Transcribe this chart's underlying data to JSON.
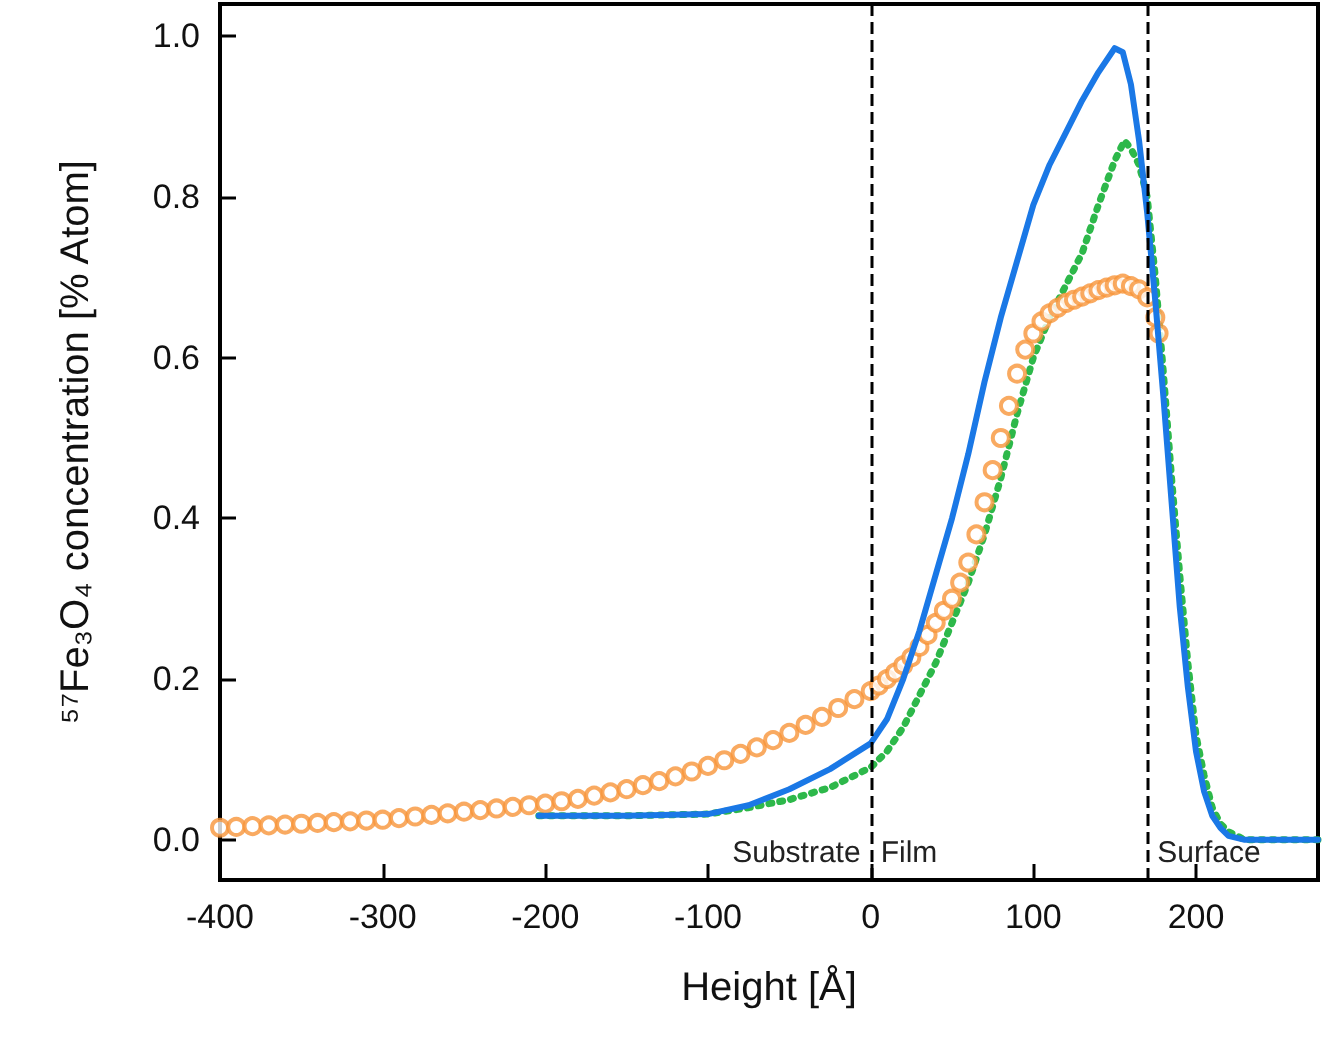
{
  "chart_data": {
    "type": "line",
    "xlabel": "Height [Å]",
    "ylabel": "⁵⁷Fe₃O₄ concentration [% Atom]",
    "xlim": [
      -400,
      275
    ],
    "xticks": [
      -400,
      -300,
      -200,
      -100,
      0,
      100,
      200
    ],
    "ylim": [
      -0.05,
      1.04
    ],
    "yticks": [
      {
        "value": 0,
        "label": "0.0"
      },
      0.2,
      0.4,
      0.6,
      0.8,
      {
        "value": 1,
        "label": "1.0"
      }
    ],
    "grid": false,
    "ref_lines": [
      {
        "axis": "x",
        "value": 0,
        "color": "#000000",
        "line_style": "dashed"
      },
      {
        "axis": "x",
        "value": 170,
        "color": "#000000",
        "line_style": "dashed"
      }
    ],
    "annotations": [
      "Substrate",
      "Film",
      "Surface"
    ],
    "series": [
      {
        "type": "scatter",
        "marker": "circle",
        "color": "#f7953a",
        "x": [
          -400,
          -390,
          -380,
          -370,
          -360,
          -350,
          -340,
          -330,
          -320,
          -310,
          -300,
          -290,
          -280,
          -270,
          -260,
          -250,
          -240,
          -230,
          -220,
          -210,
          -200,
          -190,
          -180,
          -170,
          -160,
          -150,
          -140,
          -130,
          -120,
          -110,
          -100,
          -90,
          -80,
          -70,
          -60,
          -50,
          -40,
          -30,
          -20,
          -10,
          0,
          5,
          10,
          15,
          20,
          25,
          30,
          35,
          40,
          45,
          50,
          55,
          60,
          65,
          70,
          75,
          80,
          85,
          90,
          95,
          100,
          105,
          110,
          115,
          120,
          125,
          130,
          135,
          140,
          145,
          150,
          155,
          160,
          165,
          170,
          175,
          177
        ],
        "values": [
          0.015,
          0.016,
          0.017,
          0.018,
          0.019,
          0.02,
          0.021,
          0.022,
          0.023,
          0.024,
          0.025,
          0.027,
          0.029,
          0.031,
          0.033,
          0.035,
          0.037,
          0.039,
          0.041,
          0.043,
          0.045,
          0.048,
          0.051,
          0.055,
          0.059,
          0.063,
          0.068,
          0.073,
          0.079,
          0.085,
          0.092,
          0.099,
          0.107,
          0.115,
          0.124,
          0.133,
          0.143,
          0.153,
          0.164,
          0.175,
          0.185,
          0.192,
          0.2,
          0.208,
          0.217,
          0.227,
          0.24,
          0.255,
          0.27,
          0.285,
          0.3,
          0.32,
          0.345,
          0.38,
          0.42,
          0.46,
          0.5,
          0.54,
          0.58,
          0.61,
          0.63,
          0.645,
          0.655,
          0.662,
          0.668,
          0.672,
          0.676,
          0.68,
          0.684,
          0.687,
          0.69,
          0.692,
          0.689,
          0.685,
          0.675,
          0.65,
          0.63
        ]
      },
      {
        "line_style": "solid",
        "color": "#1a78e6",
        "x": [
          -204,
          -150,
          -100,
          -75,
          -50,
          -25,
          0,
          10,
          20,
          30,
          40,
          50,
          60,
          70,
          80,
          90,
          100,
          110,
          120,
          130,
          140,
          150,
          155,
          160,
          165,
          170,
          175,
          180,
          185,
          190,
          195,
          200,
          205,
          210,
          215,
          220,
          230,
          250,
          275
        ],
        "values": [
          0.03,
          0.03,
          0.032,
          0.043,
          0.063,
          0.088,
          0.12,
          0.15,
          0.2,
          0.26,
          0.33,
          0.4,
          0.48,
          0.57,
          0.65,
          0.72,
          0.79,
          0.84,
          0.88,
          0.92,
          0.955,
          0.985,
          0.98,
          0.94,
          0.87,
          0.78,
          0.67,
          0.55,
          0.42,
          0.29,
          0.19,
          0.11,
          0.06,
          0.03,
          0.015,
          0.005,
          0.0,
          0.0,
          0.0
        ]
      },
      {
        "line_style": "dotted",
        "color": "#2db84a",
        "x": [
          -204,
          -150,
          -100,
          -75,
          -50,
          -25,
          0,
          10,
          20,
          30,
          40,
          50,
          60,
          70,
          80,
          90,
          100,
          110,
          120,
          130,
          140,
          150,
          156,
          160,
          165,
          170,
          175,
          180,
          185,
          190,
          195,
          200,
          205,
          210,
          215,
          220,
          230,
          250,
          275
        ],
        "values": [
          0.03,
          0.03,
          0.032,
          0.04,
          0.05,
          0.065,
          0.09,
          0.11,
          0.14,
          0.18,
          0.22,
          0.27,
          0.32,
          0.38,
          0.45,
          0.53,
          0.6,
          0.65,
          0.69,
          0.73,
          0.79,
          0.845,
          0.87,
          0.86,
          0.84,
          0.8,
          0.7,
          0.58,
          0.45,
          0.33,
          0.22,
          0.13,
          0.08,
          0.04,
          0.02,
          0.01,
          0.0,
          0.0,
          0.0
        ]
      }
    ]
  }
}
